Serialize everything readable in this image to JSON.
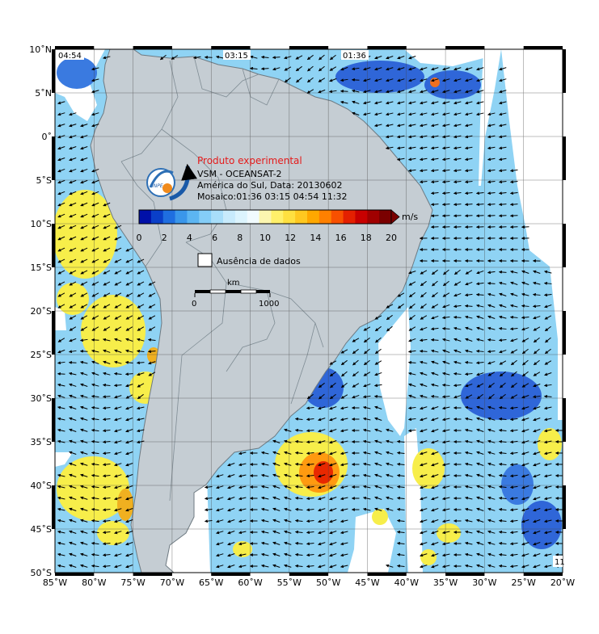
{
  "map": {
    "lon_min": -85,
    "lon_max": -20,
    "lat_min": -50,
    "lat_max": 10,
    "lon_ticks": [
      -85,
      -80,
      -75,
      -70,
      -65,
      -60,
      -55,
      -50,
      -45,
      -40,
      -35,
      -30,
      -25,
      -20
    ],
    "lat_ticks": [
      10,
      5,
      0,
      -5,
      -10,
      -15,
      -20,
      -25,
      -30,
      -35,
      -40,
      -45,
      -50
    ],
    "lon_labels": [
      "85˚W",
      "80˚W",
      "75˚W",
      "70˚W",
      "65˚W",
      "60˚W",
      "55˚W",
      "50˚W",
      "45˚W",
      "40˚W",
      "35˚W",
      "30˚W",
      "25˚W",
      "20˚W"
    ],
    "lat_labels": [
      "10˚N",
      "5˚N",
      "0˚",
      "5˚S",
      "10˚S",
      "15˚S",
      "20˚S",
      "25˚S",
      "30˚S",
      "35˚S",
      "40˚S",
      "45˚S",
      "50˚S"
    ],
    "land_color": "#c5cdd3",
    "ocean_base_color": "#8fd3f4"
  },
  "pass_times": [
    "04:54",
    "03:15",
    "01:36"
  ],
  "corner_label": "11",
  "product": {
    "experimental": "Produto experimental",
    "line1": "VSM - OCEANSAT-2",
    "line2": "América do Sul, Data: 20130602",
    "line3": "Mosaico:01:36 03:15 04:54 11:32"
  },
  "logo_text": "INPE",
  "legend": {
    "unit": "m/s",
    "ticks": [
      "0",
      "2",
      "4",
      "6",
      "8",
      "10",
      "12",
      "14",
      "16",
      "18",
      "20"
    ],
    "colors": [
      "#0010a8",
      "#0a3fc8",
      "#1f6ee0",
      "#3a96ea",
      "#5cb5f2",
      "#84cdf7",
      "#a8defa",
      "#c8ebfc",
      "#dcf4fd",
      "#f1fbfe",
      "#fcf6b0",
      "#fff06a",
      "#ffe040",
      "#ffc820",
      "#ffa800",
      "#ff8000",
      "#f85000",
      "#e42000",
      "#c80000",
      "#a00000",
      "#7a0000"
    ],
    "missing_label": "Ausência de dados"
  },
  "scale": {
    "unit": "km",
    "start": "0",
    "end": "1000"
  }
}
